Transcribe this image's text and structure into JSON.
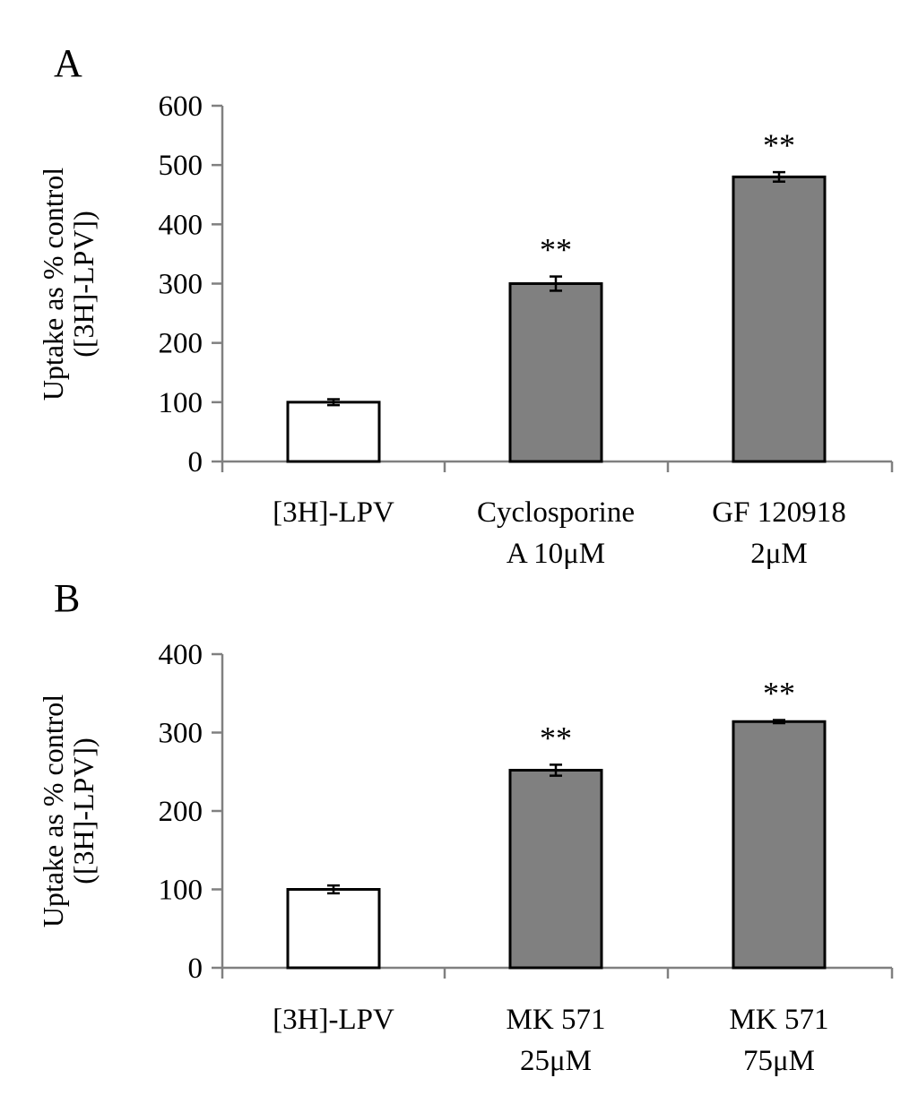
{
  "chart_data": [
    {
      "type": "bar",
      "panel_label": "A",
      "ylabel": [
        "Uptake as % control",
        "([3H]-LPV])"
      ],
      "ylim": [
        0,
        600
      ],
      "yticks": [
        0,
        100,
        200,
        300,
        400,
        500,
        600
      ],
      "categories": [
        [
          "[3H]-LPV"
        ],
        [
          "Cyclosporine",
          "A 10μM"
        ],
        [
          "GF 120918",
          "2μM"
        ]
      ],
      "values": [
        100,
        300,
        480
      ],
      "errors": [
        5,
        12,
        8
      ],
      "significance": [
        "",
        "**",
        "**"
      ],
      "colors": [
        "#ffffff",
        "#808080",
        "#808080"
      ]
    },
    {
      "type": "bar",
      "panel_label": "B",
      "ylabel": [
        "Uptake as % control",
        "([3H]-LPV])"
      ],
      "ylim": [
        0,
        400
      ],
      "yticks": [
        0,
        100,
        200,
        300,
        400
      ],
      "categories": [
        [
          "[3H]-LPV"
        ],
        [
          "MK 571",
          "25μM"
        ],
        [
          "MK 571",
          "75μM"
        ]
      ],
      "values": [
        100,
        252,
        314
      ],
      "errors": [
        5,
        7,
        2
      ],
      "significance": [
        "",
        "**",
        "**"
      ],
      "colors": [
        "#ffffff",
        "#808080",
        "#808080"
      ]
    }
  ]
}
